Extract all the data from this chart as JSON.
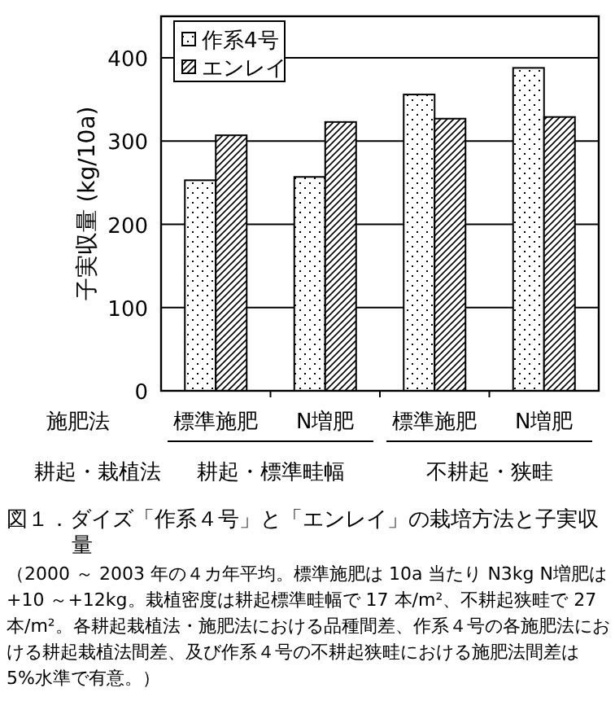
{
  "chart_data": {
    "type": "bar",
    "title": "図１．ダイズ「作系４号」と「エンレイ」の栽培方法と子実収量",
    "ylabel": "子実収量 (kg/10a)",
    "categories": [
      "標準施肥",
      "N増肥",
      "標準施肥",
      "N増肥"
    ],
    "series": [
      {
        "name": "作系4号",
        "values": [
          253,
          257,
          356,
          388
        ]
      },
      {
        "name": "エンレイ",
        "values": [
          307,
          323,
          327,
          329
        ]
      }
    ],
    "ylim": [
      0,
      450
    ],
    "yticks": [
      0,
      100,
      200,
      300,
      400
    ],
    "grid": "y",
    "legend": "top left",
    "annotations": [
      "施肥法",
      "耕起・栽植法",
      "耕起・標準畦幅",
      "不耕起・狭畦",
      "（2000 ～ 2003 年の４カ年平均。標準施肥は 10a 当たり N3kg N増肥は +10 ～+12kg。栽植密度は耕起標準畦幅で 17 本/m²、不耕起狭畦で 27 本/m²。各耕起栽植法・施肥法における品種間差、作系４号の各施肥法における耕起栽植法間差、及び作系４号の不耕起狭畦における施肥法間差は 5%水準で有意。）"
    ]
  }
}
